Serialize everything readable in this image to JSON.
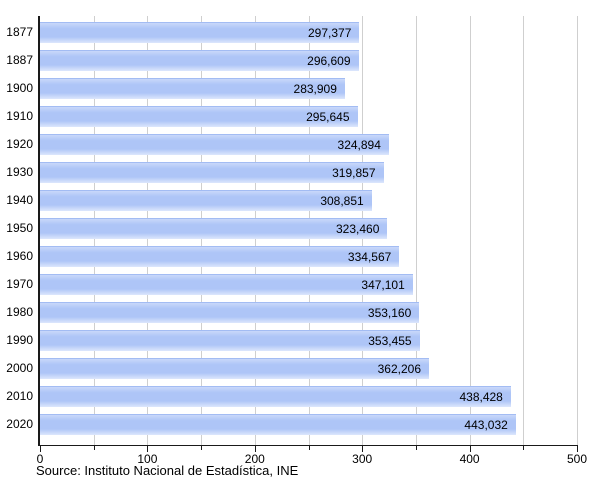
{
  "chart_data": {
    "type": "bar",
    "orientation": "horizontal",
    "title": "",
    "categories": [
      "1877",
      "1887",
      "1900",
      "1910",
      "1920",
      "1930",
      "1940",
      "1950",
      "1960",
      "1970",
      "1980",
      "1990",
      "2000",
      "2010",
      "2020"
    ],
    "values": [
      297377,
      296609,
      283909,
      295645,
      324894,
      319857,
      308851,
      323460,
      334567,
      347101,
      353160,
      353455,
      362206,
      438428,
      443032
    ],
    "value_labels": [
      "297,377",
      "296,609",
      "283,909",
      "295,645",
      "324,894",
      "319,857",
      "308,851",
      "323,460",
      "334,567",
      "347,101",
      "353,160",
      "353,455",
      "362,206",
      "438,428",
      "443,032"
    ],
    "xlim": [
      0,
      500000
    ],
    "x_tick_labels": [
      "0",
      "100",
      "200",
      "300",
      "400",
      "500"
    ],
    "x_major_step": 100000,
    "x_minor_step": 50000,
    "grid": "vertical-minor-and-major",
    "legend": null,
    "source": "Source: Instituto Nacional de Estadística, INE",
    "colors": {
      "bar_fill": "#aec5f7",
      "bar_highlight": "#dde7fc",
      "grid_line": "#cfcfcf",
      "axis_line": "#1a1a1a",
      "text": "#000000",
      "background": "#ffffff"
    }
  }
}
